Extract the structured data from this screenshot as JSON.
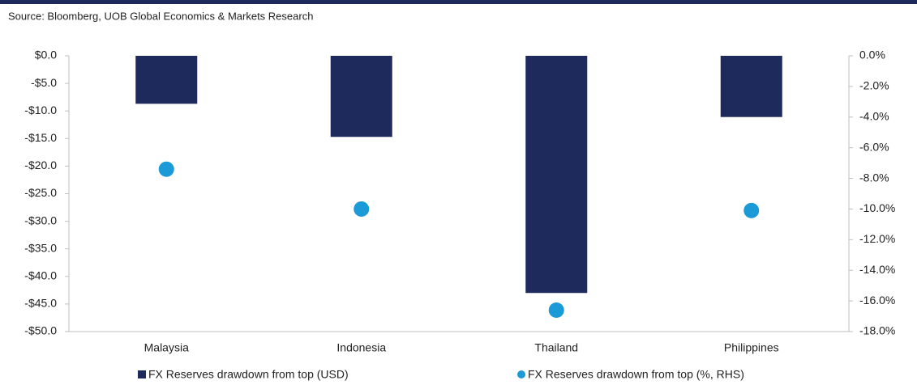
{
  "chart_data": {
    "type": "bar_dot",
    "source": "Source: Bloomberg, UOB Global Economics & Markets Research",
    "categories": [
      "Malaysia",
      "Indonesia",
      "Thailand",
      "Philippines"
    ],
    "series": [
      {
        "name": "FX Reserves drawdown from top (USD)",
        "color": "#1f2a5c",
        "values": [
          -8.7,
          -14.7,
          -43.0,
          -11.1
        ]
      },
      {
        "name": "FX Reserves drawdown from top (%, RHS)",
        "color": "#1a9ad6",
        "axis": "y2",
        "values": [
          -7.4,
          -10.0,
          -16.6,
          -10.1
        ]
      }
    ],
    "ylim": [
      -50,
      0
    ],
    "yticks": [
      {
        "value": 0,
        "label": "$0.0"
      },
      {
        "value": -5,
        "label": "-$5.0"
      },
      {
        "value": -10,
        "label": "-$10.0"
      },
      {
        "value": -15,
        "label": "-$15.0"
      },
      {
        "value": -20,
        "label": "-$20.0"
      },
      {
        "value": -25,
        "label": "-$25.0"
      },
      {
        "value": -30,
        "label": "-$30.0"
      },
      {
        "value": -35,
        "label": "-$35.0"
      },
      {
        "value": -40,
        "label": "-$40.0"
      },
      {
        "value": -45,
        "label": "-$45.0"
      },
      {
        "value": -50,
        "label": "-$50.0"
      }
    ],
    "y2lim": [
      -18,
      0
    ],
    "y2ticks": [
      {
        "value": 0,
        "label": "0.0%"
      },
      {
        "value": -2,
        "label": "-2.0%"
      },
      {
        "value": -4,
        "label": "-4.0%"
      },
      {
        "value": -6,
        "label": "-6.0%"
      },
      {
        "value": -8,
        "label": "-8.0%"
      },
      {
        "value": -10,
        "label": "-10.0%"
      },
      {
        "value": -12,
        "label": "-12.0%"
      },
      {
        "value": -14,
        "label": "-14.0%"
      },
      {
        "value": -16,
        "label": "-16.0%"
      },
      {
        "value": -18,
        "label": "-18.0%"
      }
    ],
    "grid": false
  }
}
